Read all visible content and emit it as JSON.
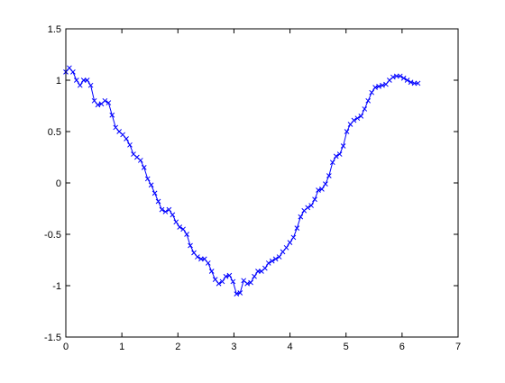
{
  "chart_data": {
    "type": "line",
    "title": "",
    "xlabel": "",
    "ylabel": "",
    "xlim": [
      0,
      7
    ],
    "ylim": [
      -1.5,
      1.5
    ],
    "xticks": [
      0,
      1,
      2,
      3,
      4,
      5,
      6,
      7
    ],
    "xtick_labels": [
      "0",
      "1",
      "2",
      "3",
      "4",
      "5",
      "6",
      "7"
    ],
    "yticks": [
      -1.5,
      -1,
      -0.5,
      0,
      0.5,
      1,
      1.5
    ],
    "ytick_labels": [
      "-1.5",
      "-1",
      "-0.5",
      "0",
      "0.5",
      "1",
      "1.5"
    ],
    "grid": false,
    "legend": false,
    "marker": "x",
    "line_color": "#0000ff",
    "series": [
      {
        "x": [
          0,
          0.063,
          0.127,
          0.19,
          0.254,
          0.317,
          0.381,
          0.444,
          0.508,
          0.571,
          0.635,
          0.698,
          0.762,
          0.825,
          0.889,
          0.952,
          1.016,
          1.079,
          1.142,
          1.206,
          1.269,
          1.333,
          1.396,
          1.46,
          1.523,
          1.587,
          1.65,
          1.714,
          1.777,
          1.841,
          1.904,
          1.967,
          2.031,
          2.094,
          2.158,
          2.221,
          2.285,
          2.348,
          2.412,
          2.475,
          2.539,
          2.602,
          2.666,
          2.729,
          2.792,
          2.856,
          2.919,
          2.983,
          3.046,
          3.11,
          3.173,
          3.237,
          3.3,
          3.364,
          3.427,
          3.491,
          3.554,
          3.617,
          3.681,
          3.744,
          3.808,
          3.871,
          3.935,
          3.998,
          4.062,
          4.125,
          4.189,
          4.252,
          4.316,
          4.379,
          4.442,
          4.506,
          4.569,
          4.633,
          4.696,
          4.76,
          4.823,
          4.887,
          4.95,
          5.014,
          5.077,
          5.141,
          5.204,
          5.267,
          5.331,
          5.394,
          5.458,
          5.521,
          5.585,
          5.648,
          5.712,
          5.775,
          5.839,
          5.902,
          5.966,
          6.029,
          6.092,
          6.156,
          6.219,
          6.283
        ],
        "y": [
          1.08,
          1.12,
          1.08,
          1.0,
          0.95,
          1.0,
          1.0,
          0.95,
          0.8,
          0.76,
          0.77,
          0.8,
          0.78,
          0.66,
          0.54,
          0.5,
          0.47,
          0.43,
          0.37,
          0.28,
          0.25,
          0.22,
          0.15,
          0.04,
          -0.02,
          -0.1,
          -0.18,
          -0.26,
          -0.28,
          -0.26,
          -0.31,
          -0.38,
          -0.43,
          -0.45,
          -0.5,
          -0.61,
          -0.68,
          -0.72,
          -0.74,
          -0.74,
          -0.78,
          -0.86,
          -0.94,
          -0.98,
          -0.96,
          -0.91,
          -0.9,
          -0.96,
          -1.08,
          -1.07,
          -0.95,
          -0.98,
          -0.97,
          -0.91,
          -0.86,
          -0.86,
          -0.83,
          -0.78,
          -0.76,
          -0.74,
          -0.72,
          -0.67,
          -0.63,
          -0.58,
          -0.53,
          -0.44,
          -0.33,
          -0.27,
          -0.24,
          -0.22,
          -0.16,
          -0.07,
          -0.06,
          -0.01,
          0.07,
          0.2,
          0.26,
          0.28,
          0.36,
          0.5,
          0.57,
          0.61,
          0.63,
          0.65,
          0.72,
          0.8,
          0.88,
          0.93,
          0.94,
          0.95,
          0.96,
          1.0,
          1.03,
          1.04,
          1.04,
          1.02,
          1.0,
          0.98,
          0.97,
          0.97
        ]
      }
    ]
  }
}
